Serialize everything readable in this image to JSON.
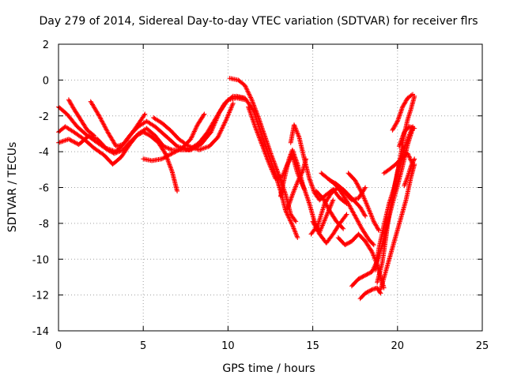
{
  "chart_data": {
    "type": "scatter",
    "title": "Day 279 of 2014, Sidereal Day-to-day VTEC variation (SDTVAR) for receiver flrs",
    "xlabel": "GPS time / hours",
    "ylabel": "SDTVAR / TECUs",
    "xlim": [
      0,
      25
    ],
    "ylim": [
      -14,
      2
    ],
    "xticks": [
      "0",
      "5",
      "10",
      "15",
      "20",
      "25"
    ],
    "yticks": [
      "-14",
      "-12",
      "-10",
      "-8",
      "-6",
      "-4",
      "-2",
      "0",
      "2"
    ],
    "grid": true,
    "marker": "+",
    "color": "#ff0000",
    "series": [
      {
        "points": [
          [
            0,
            -1.5
          ],
          [
            0.5,
            -1.9
          ],
          [
            1.1,
            -2.6
          ],
          [
            1.7,
            -3.1
          ],
          [
            2.3,
            -3.5
          ],
          [
            2.9,
            -3.9
          ],
          [
            3.3,
            -4.1
          ],
          [
            3.8,
            -3.9
          ],
          [
            4.2,
            -3.5
          ],
          [
            4.6,
            -3.1
          ],
          [
            5.0,
            -2.9
          ],
          [
            5.4,
            -3.1
          ],
          [
            5.9,
            -3.5
          ],
          [
            6.3,
            -4.1
          ],
          [
            6.7,
            -5.1
          ],
          [
            7.0,
            -6.2
          ]
        ]
      },
      {
        "points": [
          [
            0,
            -2.9
          ],
          [
            0.4,
            -2.6
          ],
          [
            0.9,
            -2.9
          ],
          [
            1.5,
            -3.3
          ],
          [
            2.1,
            -3.8
          ],
          [
            2.7,
            -4.2
          ],
          [
            3.2,
            -4.7
          ],
          [
            3.7,
            -4.3
          ],
          [
            4.2,
            -3.6
          ],
          [
            4.7,
            -3.0
          ],
          [
            5.2,
            -2.7
          ],
          [
            5.7,
            -3.1
          ],
          [
            6.2,
            -3.7
          ],
          [
            6.7,
            -3.9
          ],
          [
            7.2,
            -3.9
          ],
          [
            7.8,
            -3.9
          ],
          [
            8.4,
            -3.6
          ],
          [
            9.0,
            -2.9
          ],
          [
            9.5,
            -1.8
          ],
          [
            10.0,
            -1.1
          ],
          [
            10.5,
            -1.0
          ],
          [
            11.0,
            -1.1
          ]
        ]
      },
      {
        "points": [
          [
            0,
            -3.5
          ],
          [
            0.6,
            -3.3
          ],
          [
            1.2,
            -3.6
          ],
          [
            1.8,
            -3.1
          ],
          [
            2.3,
            -3.3
          ],
          [
            2.8,
            -3.8
          ],
          [
            3.4,
            -4.0
          ],
          [
            4.0,
            -3.4
          ],
          [
            4.6,
            -2.6
          ],
          [
            5.1,
            -1.9
          ]
        ]
      },
      {
        "points": [
          [
            1.9,
            -1.2
          ],
          [
            2.4,
            -2.0
          ],
          [
            2.9,
            -2.9
          ],
          [
            3.4,
            -3.7
          ],
          [
            3.8,
            -3.6
          ],
          [
            4.2,
            -3.1
          ],
          [
            4.7,
            -2.6
          ],
          [
            5.2,
            -2.3
          ],
          [
            5.7,
            -2.6
          ],
          [
            6.3,
            -3.1
          ],
          [
            7.0,
            -3.7
          ],
          [
            7.7,
            -3.9
          ],
          [
            8.3,
            -3.5
          ],
          [
            8.8,
            -2.9
          ],
          [
            9.3,
            -2.1
          ],
          [
            9.8,
            -1.3
          ],
          [
            10.3,
            -0.9
          ],
          [
            10.9,
            -1.0
          ]
        ]
      },
      {
        "points": [
          [
            0.6,
            -1.1
          ],
          [
            0.9,
            -1.6
          ],
          [
            1.3,
            -2.2
          ],
          [
            1.7,
            -2.8
          ],
          [
            2.1,
            -3.1
          ]
        ]
      },
      {
        "points": [
          [
            5.0,
            -4.4
          ],
          [
            5.5,
            -4.5
          ],
          [
            6.1,
            -4.4
          ],
          [
            6.7,
            -4.1
          ],
          [
            7.3,
            -3.8
          ],
          [
            7.8,
            -3.3
          ],
          [
            8.2,
            -2.5
          ],
          [
            8.6,
            -1.9
          ]
        ]
      },
      {
        "points": [
          [
            5.6,
            -2.1
          ],
          [
            6.1,
            -2.4
          ],
          [
            6.6,
            -2.8
          ],
          [
            7.1,
            -3.3
          ],
          [
            7.7,
            -3.7
          ],
          [
            8.3,
            -3.9
          ],
          [
            8.9,
            -3.7
          ],
          [
            9.4,
            -3.2
          ],
          [
            9.9,
            -2.2
          ],
          [
            10.3,
            -1.3
          ]
        ]
      },
      {
        "points": [
          [
            10.1,
            0.1
          ],
          [
            10.6,
            0.0
          ],
          [
            11.0,
            -0.3
          ],
          [
            11.4,
            -1.1
          ],
          [
            11.8,
            -2.1
          ],
          [
            12.2,
            -3.2
          ],
          [
            12.6,
            -4.3
          ],
          [
            13.0,
            -5.3
          ],
          [
            13.4,
            -6.4
          ],
          [
            13.7,
            -7.5
          ],
          [
            14.0,
            -7.9
          ]
        ]
      },
      {
        "points": [
          [
            10.5,
            -0.9
          ],
          [
            11.0,
            -1.0
          ],
          [
            11.5,
            -1.7
          ],
          [
            11.9,
            -2.8
          ],
          [
            12.3,
            -3.9
          ],
          [
            12.7,
            -5.0
          ],
          [
            13.1,
            -6.2
          ],
          [
            13.4,
            -7.3
          ],
          [
            13.8,
            -8.1
          ],
          [
            14.1,
            -8.8
          ]
        ]
      },
      {
        "points": [
          [
            11.2,
            -1.5
          ],
          [
            11.6,
            -2.6
          ],
          [
            12.0,
            -3.6
          ],
          [
            12.4,
            -4.6
          ],
          [
            12.8,
            -5.5
          ],
          [
            13.2,
            -5.4
          ],
          [
            13.5,
            -4.7
          ],
          [
            13.8,
            -4.2
          ],
          [
            14.1,
            -5.2
          ],
          [
            14.5,
            -6.1
          ]
        ]
      },
      {
        "points": [
          [
            13.1,
            -6.5
          ],
          [
            13.3,
            -5.6
          ],
          [
            13.6,
            -4.4
          ],
          [
            13.8,
            -3.9
          ],
          [
            14.1,
            -4.7
          ],
          [
            14.4,
            -5.8
          ],
          [
            14.8,
            -6.9
          ],
          [
            15.1,
            -7.9
          ],
          [
            15.4,
            -8.5
          ],
          [
            15.8,
            -7.6
          ],
          [
            16.2,
            -6.7
          ]
        ]
      },
      {
        "points": [
          [
            13.5,
            -7.2
          ],
          [
            13.8,
            -6.4
          ],
          [
            14.1,
            -5.7
          ],
          [
            14.4,
            -5.1
          ],
          [
            14.6,
            -4.4
          ]
        ]
      },
      {
        "points": [
          [
            13.7,
            -3.5
          ],
          [
            13.9,
            -2.5
          ],
          [
            14.2,
            -3.2
          ],
          [
            14.5,
            -4.4
          ],
          [
            14.8,
            -5.5
          ],
          [
            15.1,
            -6.3
          ],
          [
            15.4,
            -6.7
          ],
          [
            15.8,
            -6.4
          ],
          [
            16.2,
            -6.1
          ],
          [
            16.6,
            -6.6
          ],
          [
            17.0,
            -6.9
          ]
        ]
      },
      {
        "points": [
          [
            14.9,
            -8.6
          ],
          [
            15.3,
            -8.1
          ],
          [
            15.7,
            -6.9
          ],
          [
            16.1,
            -6.3
          ],
          [
            16.5,
            -6.0
          ],
          [
            16.9,
            -6.3
          ],
          [
            17.3,
            -6.7
          ],
          [
            17.7,
            -6.6
          ],
          [
            18.1,
            -6.0
          ]
        ]
      },
      {
        "points": [
          [
            15.0,
            -7.9
          ],
          [
            15.4,
            -8.6
          ],
          [
            15.8,
            -9.1
          ],
          [
            16.2,
            -8.6
          ],
          [
            16.6,
            -8.0
          ],
          [
            17.0,
            -7.5
          ]
        ]
      },
      {
        "points": [
          [
            15.2,
            -6.2
          ],
          [
            15.6,
            -6.6
          ],
          [
            16.0,
            -7.3
          ],
          [
            16.4,
            -7.9
          ],
          [
            16.8,
            -8.3
          ]
        ]
      },
      {
        "points": [
          [
            15.5,
            -5.2
          ],
          [
            15.9,
            -5.5
          ],
          [
            16.3,
            -5.8
          ],
          [
            16.7,
            -6.3
          ],
          [
            17.1,
            -6.9
          ],
          [
            17.5,
            -7.6
          ],
          [
            17.9,
            -8.3
          ],
          [
            18.3,
            -8.9
          ],
          [
            18.6,
            -9.2
          ]
        ]
      },
      {
        "points": [
          [
            16.0,
            -5.6
          ],
          [
            16.4,
            -5.8
          ],
          [
            16.9,
            -6.2
          ],
          [
            17.4,
            -6.7
          ],
          [
            17.8,
            -7.1
          ],
          [
            18.1,
            -7.6
          ]
        ]
      },
      {
        "points": [
          [
            17.1,
            -5.2
          ],
          [
            17.5,
            -5.6
          ],
          [
            17.9,
            -6.3
          ],
          [
            18.3,
            -7.2
          ],
          [
            18.6,
            -7.9
          ],
          [
            18.9,
            -8.4
          ]
        ]
      },
      {
        "points": [
          [
            16.5,
            -8.8
          ],
          [
            16.9,
            -9.2
          ],
          [
            17.3,
            -9.0
          ],
          [
            17.7,
            -8.6
          ],
          [
            18.1,
            -9.0
          ],
          [
            18.5,
            -9.6
          ],
          [
            18.8,
            -10.3
          ],
          [
            19.0,
            -11.0
          ],
          [
            19.2,
            -11.6
          ]
        ]
      },
      {
        "points": [
          [
            17.3,
            -11.5
          ],
          [
            17.7,
            -11.1
          ],
          [
            18.1,
            -10.9
          ],
          [
            18.5,
            -10.7
          ],
          [
            18.8,
            -10.1
          ],
          [
            19.1,
            -9.2
          ],
          [
            19.4,
            -8.0
          ],
          [
            19.7,
            -6.9
          ],
          [
            20.0,
            -5.9
          ],
          [
            20.3,
            -4.8
          ],
          [
            20.6,
            -3.6
          ],
          [
            20.9,
            -2.7
          ]
        ]
      },
      {
        "points": [
          [
            17.8,
            -12.2
          ],
          [
            18.1,
            -11.9
          ],
          [
            18.5,
            -11.7
          ],
          [
            18.8,
            -11.6
          ],
          [
            19.0,
            -11.9
          ]
        ]
      },
      {
        "points": [
          [
            18.7,
            -10.6
          ],
          [
            18.9,
            -9.4
          ],
          [
            19.2,
            -8.1
          ],
          [
            19.5,
            -6.9
          ],
          [
            19.8,
            -6.0
          ],
          [
            20.0,
            -5.2
          ],
          [
            20.2,
            -4.1
          ],
          [
            20.4,
            -3.0
          ],
          [
            20.6,
            -2.2
          ],
          [
            20.8,
            -1.6
          ],
          [
            21.0,
            -0.9
          ]
        ]
      },
      {
        "points": [
          [
            19.0,
            -11.7
          ],
          [
            19.3,
            -10.7
          ],
          [
            19.6,
            -9.7
          ],
          [
            19.9,
            -8.7
          ],
          [
            20.2,
            -7.7
          ],
          [
            20.5,
            -6.7
          ],
          [
            20.8,
            -5.4
          ],
          [
            21.0,
            -4.7
          ]
        ]
      },
      {
        "points": [
          [
            18.8,
            -11.3
          ],
          [
            19.1,
            -10.2
          ],
          [
            19.3,
            -8.9
          ],
          [
            19.5,
            -7.5
          ],
          [
            19.8,
            -6.1
          ],
          [
            20.0,
            -5.1
          ],
          [
            20.3,
            -4.1
          ],
          [
            20.6,
            -3.3
          ],
          [
            20.9,
            -2.6
          ]
        ]
      },
      {
        "points": [
          [
            19.2,
            -5.2
          ],
          [
            19.5,
            -5.0
          ],
          [
            19.9,
            -4.7
          ],
          [
            20.2,
            -4.4
          ],
          [
            20.6,
            -4.1
          ],
          [
            20.9,
            -4.7
          ]
        ]
      },
      {
        "points": [
          [
            19.7,
            -2.8
          ],
          [
            20.0,
            -2.3
          ],
          [
            20.3,
            -1.5
          ],
          [
            20.6,
            -1.0
          ],
          [
            20.9,
            -0.8
          ]
        ]
      },
      {
        "points": [
          [
            20.4,
            -5.9
          ],
          [
            20.6,
            -5.4
          ],
          [
            20.8,
            -4.8
          ],
          [
            21.0,
            -4.4
          ]
        ]
      },
      {
        "points": [
          [
            20.1,
            -3.7
          ],
          [
            20.4,
            -2.9
          ],
          [
            20.7,
            -2.6
          ],
          [
            21.0,
            -2.7
          ]
        ]
      }
    ]
  }
}
